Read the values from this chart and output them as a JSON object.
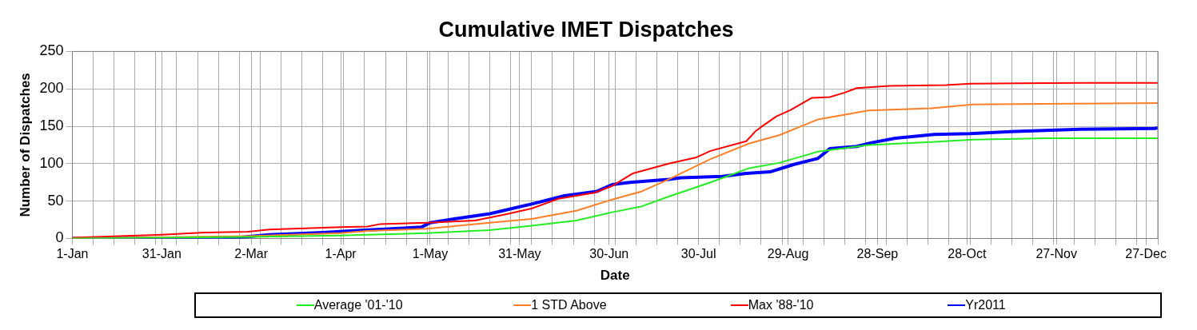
{
  "chart_data": {
    "type": "line",
    "title": "Cumulative IMET Dispatches",
    "xlabel": "Date",
    "ylabel": "Number of Dispatches",
    "xlim": [
      "--01-01",
      "--12-31"
    ],
    "xticks": [
      {
        "value": "--01-01",
        "label": "1-Jan"
      },
      {
        "value": "--01-31",
        "label": "31-Jan"
      },
      {
        "value": "--03-02",
        "label": "2-Mar"
      },
      {
        "value": "--04-01",
        "label": "1-Apr"
      },
      {
        "value": "--05-01",
        "label": "1-May"
      },
      {
        "value": "--05-31",
        "label": "31-May"
      },
      {
        "value": "--06-30",
        "label": "30-Jun"
      },
      {
        "value": "--07-30",
        "label": "30-Jul"
      },
      {
        "value": "--08-29",
        "label": "29-Aug"
      },
      {
        "value": "--09-28",
        "label": "28-Sep"
      },
      {
        "value": "--10-28",
        "label": "28-Oct"
      },
      {
        "value": "--11-27",
        "label": "27-Nov"
      },
      {
        "value": "--12-27",
        "label": "27-Dec"
      },
      {
        "value": "--01-08",
        "label": null
      },
      {
        "value": "--01-15",
        "label": null
      },
      {
        "value": "--01-22",
        "label": null
      },
      {
        "value": "--01-29",
        "label": null
      },
      {
        "value": "--02-05",
        "label": null
      },
      {
        "value": "--02-12",
        "label": null
      },
      {
        "value": "--02-19",
        "label": null
      },
      {
        "value": "--02-26",
        "label": null
      },
      {
        "value": "--03-05",
        "label": null
      },
      {
        "value": "--03-12",
        "label": null
      },
      {
        "value": "--03-19",
        "label": null
      },
      {
        "value": "--03-26",
        "label": null
      },
      {
        "value": "--04-02",
        "label": null
      },
      {
        "value": "--04-09",
        "label": null
      },
      {
        "value": "--04-16",
        "label": null
      },
      {
        "value": "--04-23",
        "label": null
      },
      {
        "value": "--04-30",
        "label": null
      },
      {
        "value": "--05-07",
        "label": null
      },
      {
        "value": "--05-14",
        "label": null
      },
      {
        "value": "--05-21",
        "label": null
      },
      {
        "value": "--05-28",
        "label": null
      },
      {
        "value": "--06-04",
        "label": null
      },
      {
        "value": "--06-11",
        "label": null
      },
      {
        "value": "--06-18",
        "label": null
      },
      {
        "value": "--06-25",
        "label": null
      },
      {
        "value": "--07-02",
        "label": null
      },
      {
        "value": "--07-09",
        "label": null
      },
      {
        "value": "--07-16",
        "label": null
      },
      {
        "value": "--07-23",
        "label": null
      },
      {
        "value": "--08-06",
        "label": null
      },
      {
        "value": "--08-13",
        "label": null
      },
      {
        "value": "--08-20",
        "label": null
      },
      {
        "value": "--08-27",
        "label": null
      },
      {
        "value": "--09-03",
        "label": null
      },
      {
        "value": "--09-10",
        "label": null
      },
      {
        "value": "--09-17",
        "label": null
      },
      {
        "value": "--09-24",
        "label": null
      },
      {
        "value": "--10-01",
        "label": null
      },
      {
        "value": "--10-08",
        "label": null
      },
      {
        "value": "--10-15",
        "label": null
      },
      {
        "value": "--10-22",
        "label": null
      },
      {
        "value": "--10-29",
        "label": null
      },
      {
        "value": "--11-05",
        "label": null
      },
      {
        "value": "--11-12",
        "label": null
      },
      {
        "value": "--11-19",
        "label": null
      },
      {
        "value": "--11-26",
        "label": null
      },
      {
        "value": "--12-03",
        "label": null
      },
      {
        "value": "--12-10",
        "label": null
      },
      {
        "value": "--12-17",
        "label": null
      },
      {
        "value": "--12-24",
        "label": null
      },
      {
        "value": "--12-31",
        "label": null
      }
    ],
    "ylim": [
      0,
      250
    ],
    "yticks": [
      0,
      50,
      100,
      150,
      200,
      250
    ],
    "grid": true,
    "legend": "bottom",
    "series": [
      {
        "name": "Average '01-'10",
        "color": "#22ee22",
        "x": [
          "--01-01",
          "--03-01",
          "--04-01",
          "--04-10",
          "--04-30",
          "--05-21",
          "--06-04",
          "--06-19",
          "--07-01",
          "--07-11",
          "--07-20",
          "--08-03",
          "--08-16",
          "--08-26",
          "--09-08",
          "--09-25",
          "--10-16",
          "--10-30",
          "--11-23",
          "--12-31"
        ],
        "values": [
          0,
          2,
          4,
          5,
          7,
          11,
          17,
          24,
          35,
          43,
          56,
          75,
          94,
          101,
          116,
          125,
          129,
          132,
          134,
          134
        ]
      },
      {
        "name": "1 STD Above",
        "color": "#ff7f27",
        "x": [
          "--01-01",
          "--03-01",
          "--04-01",
          "--04-10",
          "--04-30",
          "--05-21",
          "--06-04",
          "--06-19",
          "--07-01",
          "--07-11",
          "--07-20",
          "--08-03",
          "--08-16",
          "--08-26",
          "--09-08",
          "--09-25",
          "--10-16",
          "--10-30",
          "--11-23",
          "--12-31"
        ],
        "values": [
          0,
          3,
          7,
          10,
          13,
          21,
          26,
          37,
          52,
          63,
          79,
          106,
          127,
          138,
          159,
          171,
          174,
          179,
          180,
          181
        ]
      },
      {
        "name": "Max '88-'10",
        "color": "#ff0000",
        "x": [
          "--01-01",
          "--01-31",
          "--02-15",
          "--03-01",
          "--03-08",
          "--04-01",
          "--04-10",
          "--04-14",
          "--04-30",
          "--05-16",
          "--05-26",
          "--06-04",
          "--06-13",
          "--06-25",
          "--07-01",
          "--07-08",
          "--07-20",
          "--07-29",
          "--08-03",
          "--08-15",
          "--08-18",
          "--08-20",
          "--08-25",
          "--08-30",
          "--09-06",
          "--09-12",
          "--09-17",
          "--09-21",
          "--10-02",
          "--10-21",
          "--10-29",
          "--12-05",
          "--12-31"
        ],
        "values": [
          1,
          5,
          8,
          9,
          12,
          15,
          16,
          19,
          21,
          24,
          32,
          40,
          53,
          61,
          70,
          87,
          100,
          108,
          117,
          130,
          143,
          149,
          163,
          172,
          188,
          189,
          195,
          201,
          204,
          205,
          207,
          208,
          208
        ]
      },
      {
        "name": "Yr2011",
        "color": "#0000ff",
        "x": [
          "--01-01",
          "--02-22",
          "--02-28",
          "--03-08",
          "--03-26",
          "--04-09",
          "--04-28",
          "--05-01",
          "--05-09",
          "--05-21",
          "--06-04",
          "--06-15",
          "--06-26",
          "--07-01",
          "--07-07",
          "--07-20",
          "--07-24",
          "--08-07",
          "--08-15",
          "--08-23",
          "--08-31",
          "--09-08",
          "--09-12",
          "--09-21",
          "--09-26",
          "--10-04",
          "--10-17",
          "--10-29",
          "--11-13",
          "--12-05",
          "--12-30",
          "--12-31"
        ],
        "values": [
          0,
          0,
          2,
          5,
          8,
          11,
          15,
          21,
          26,
          33,
          46,
          57,
          63,
          72,
          75,
          79,
          81,
          83,
          87,
          89,
          99,
          107,
          120,
          123,
          128,
          134,
          139,
          140,
          143,
          146,
          147,
          148
        ]
      }
    ]
  }
}
